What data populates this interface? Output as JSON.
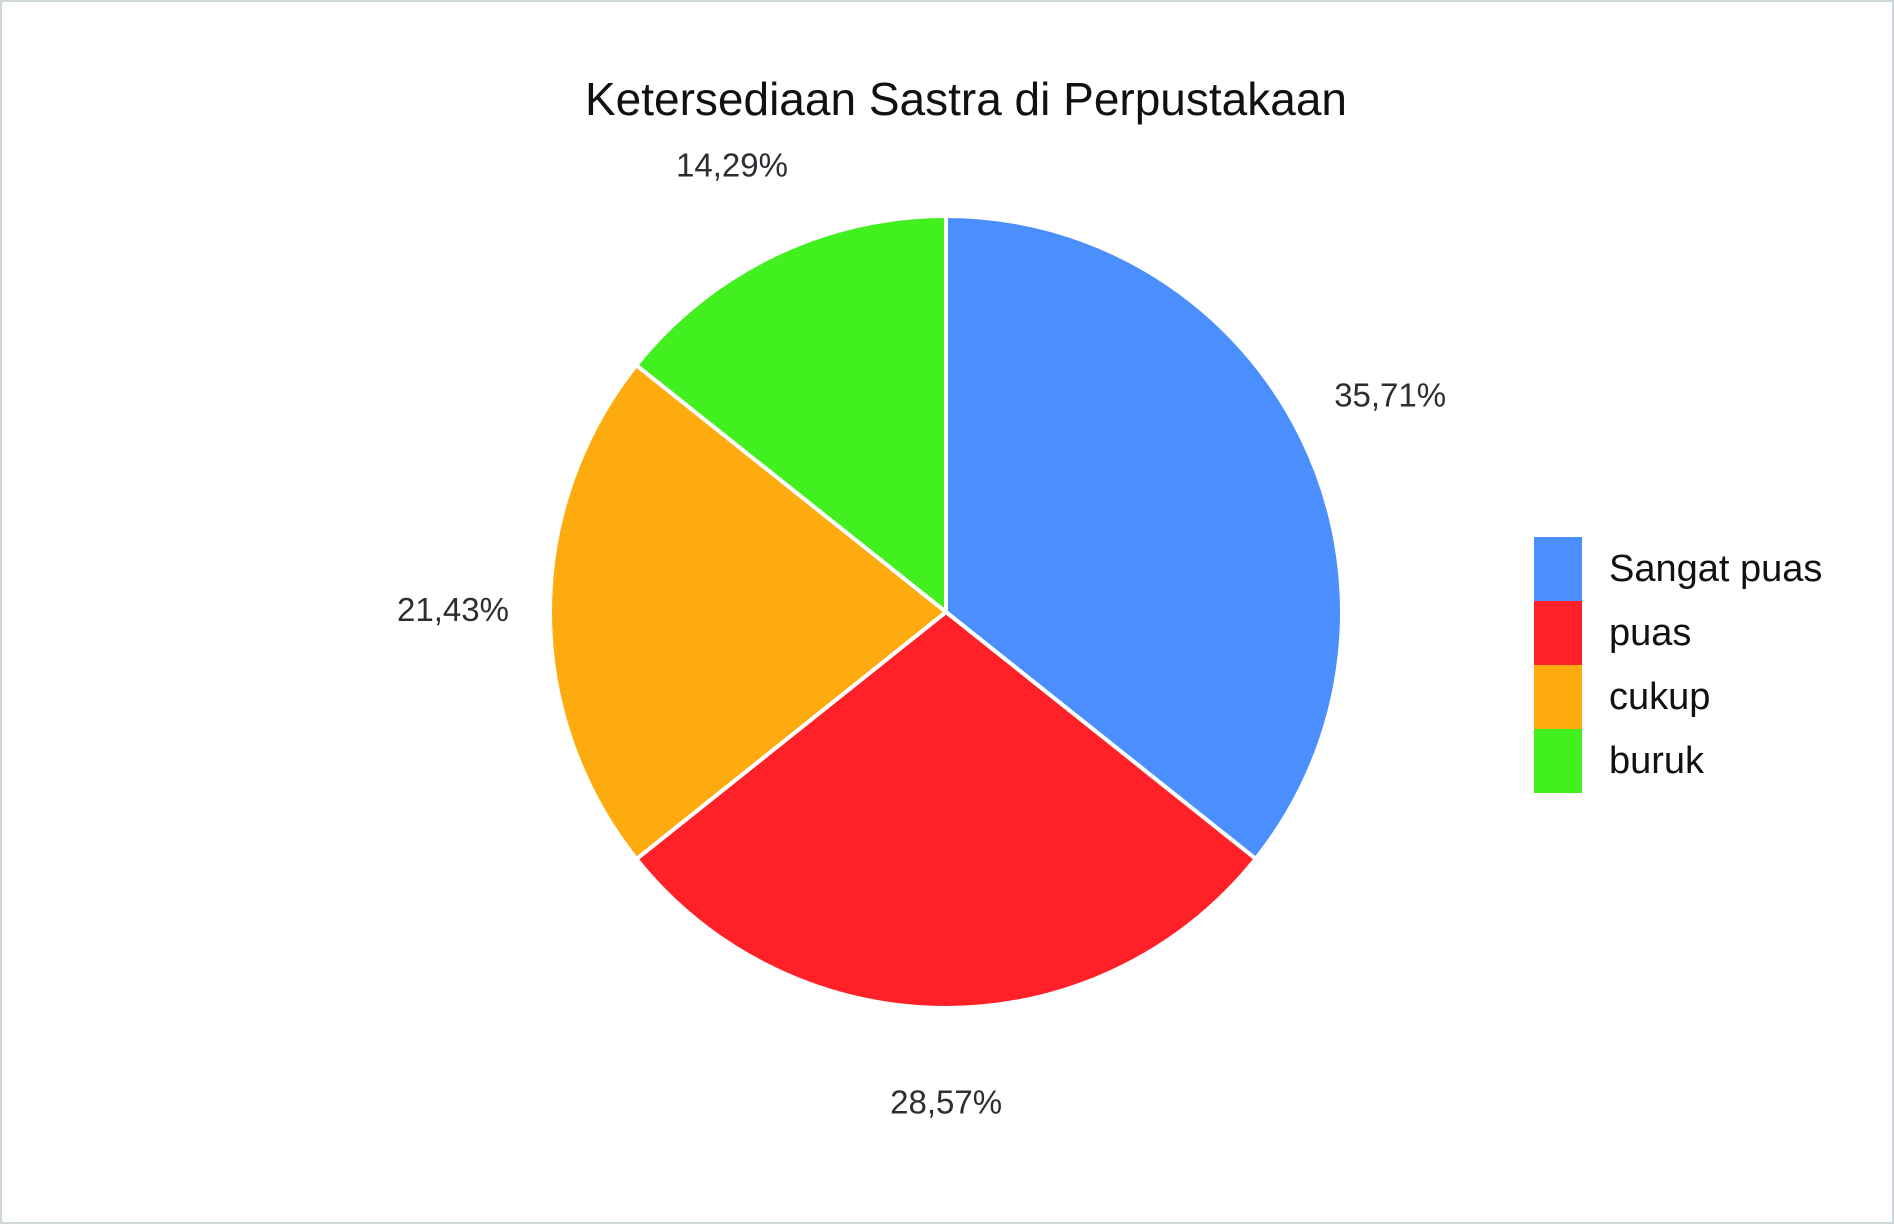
{
  "chart_data": {
    "type": "pie",
    "title": "Ketersediaan Sastra di Perpustakaan",
    "categories": [
      "Sangat puas",
      "puas",
      "cukup",
      "buruk"
    ],
    "values": [
      35.71,
      28.57,
      21.43,
      14.29
    ],
    "value_labels": [
      "35,71%",
      "28,57%",
      "21,43%",
      "14,29%"
    ],
    "colors": [
      "#4a8ffd",
      "#ff2028",
      "#fdab0f",
      "#41f01e"
    ],
    "legend": "right"
  }
}
